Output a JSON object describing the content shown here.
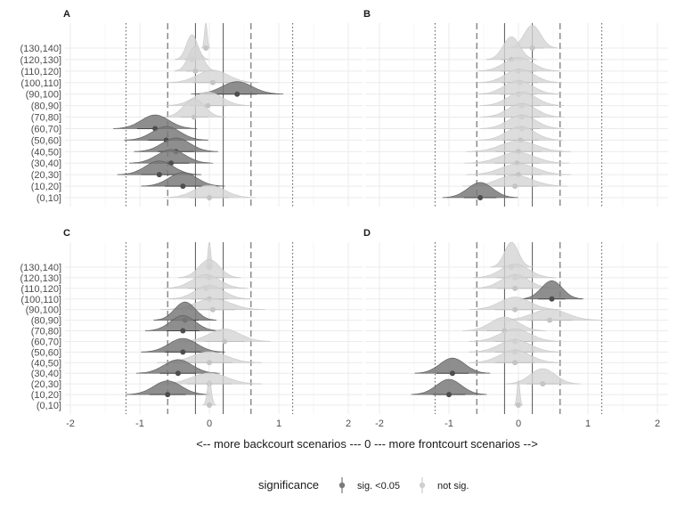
{
  "chart_data": {
    "type": "ridgeline",
    "xlabel": "<-- more backcourt scenarios --- 0 --- more frontcourt scenarios -->",
    "xlim": [
      -2.2,
      2.2
    ],
    "x_ticks": [
      -2,
      -1,
      0,
      1,
      2
    ],
    "x_tick_labels": [
      "-2",
      "-1",
      "0",
      "1",
      "2"
    ],
    "categories": [
      "(0,10]",
      "(10,20]",
      "(20,30]",
      "(30,40]",
      "(40,50]",
      "(50,60]",
      "(60,70]",
      "(70,80]",
      "(80,90]",
      "(90,100]",
      "(100,110]",
      "(110,120]",
      "(120,130]",
      "(130,140]"
    ],
    "reference_lines": {
      "solid": [
        -0.2,
        0.2
      ],
      "dashed": [
        -0.6,
        0.6
      ],
      "dotted": [
        -1.2,
        1.2
      ]
    },
    "grid": true,
    "legend": {
      "title": "significance",
      "position": "bottom",
      "entries": [
        {
          "label": "sig. <0.05",
          "color": "#7a7a7a"
        },
        {
          "label": "not sig.",
          "color": "#cfcfcf"
        }
      ]
    },
    "colors": {
      "sig": "#7a7a7a",
      "not_sig": "#d4d4d4"
    },
    "panels": [
      {
        "label": "A",
        "estimates": [
          {
            "category": "(0,10]",
            "value": 0.0,
            "spread": 0.22,
            "sig": false
          },
          {
            "category": "(10,20]",
            "value": -0.38,
            "spread": 0.2,
            "sig": true
          },
          {
            "category": "(20,30]",
            "value": -0.72,
            "spread": 0.2,
            "sig": true
          },
          {
            "category": "(30,40]",
            "value": -0.55,
            "spread": 0.2,
            "sig": true
          },
          {
            "category": "(40,50]",
            "value": -0.48,
            "spread": 0.2,
            "sig": true
          },
          {
            "category": "(50,60]",
            "value": -0.62,
            "spread": 0.2,
            "sig": true
          },
          {
            "category": "(60,70]",
            "value": -0.78,
            "spread": 0.2,
            "sig": true
          },
          {
            "category": "(70,80]",
            "value": -0.22,
            "spread": 0.15,
            "sig": false
          },
          {
            "category": "(80,90]",
            "value": -0.02,
            "spread": 0.2,
            "sig": false
          },
          {
            "category": "(90,100]",
            "value": 0.4,
            "spread": 0.22,
            "sig": true
          },
          {
            "category": "(100,110]",
            "value": 0.05,
            "spread": 0.22,
            "sig": false
          },
          {
            "category": "(110,120]",
            "value": -0.2,
            "spread": 0.1,
            "sig": false
          },
          {
            "category": "(120,130]",
            "value": -0.25,
            "spread": 0.08,
            "sig": false
          },
          {
            "category": "(130,140]",
            "value": -0.05,
            "spread": 0.02,
            "sig": false
          }
        ]
      },
      {
        "label": "B",
        "estimates": [
          {
            "category": "(0,10]",
            "value": -0.55,
            "spread": 0.18,
            "sig": true
          },
          {
            "category": "(10,20]",
            "value": -0.05,
            "spread": 0.25,
            "sig": false
          },
          {
            "category": "(20,30]",
            "value": 0.0,
            "spread": 0.25,
            "sig": false
          },
          {
            "category": "(30,40]",
            "value": -0.02,
            "spread": 0.25,
            "sig": false
          },
          {
            "category": "(40,50]",
            "value": 0.0,
            "spread": 0.25,
            "sig": false
          },
          {
            "category": "(50,60]",
            "value": 0.03,
            "spread": 0.2,
            "sig": false
          },
          {
            "category": "(60,70]",
            "value": 0.05,
            "spread": 0.2,
            "sig": false
          },
          {
            "category": "(70,80]",
            "value": 0.05,
            "spread": 0.2,
            "sig": false
          },
          {
            "category": "(80,90]",
            "value": 0.05,
            "spread": 0.2,
            "sig": false
          },
          {
            "category": "(90,100]",
            "value": 0.0,
            "spread": 0.2,
            "sig": false
          },
          {
            "category": "(100,110]",
            "value": 0.02,
            "spread": 0.2,
            "sig": false
          },
          {
            "category": "(110,120]",
            "value": 0.0,
            "spread": 0.2,
            "sig": false
          },
          {
            "category": "(120,130]",
            "value": -0.1,
            "spread": 0.12,
            "sig": false
          },
          {
            "category": "(130,140]",
            "value": 0.2,
            "spread": 0.12,
            "sig": false
          }
        ]
      },
      {
        "label": "C",
        "estimates": [
          {
            "category": "(0,10]",
            "value": 0.0,
            "spread": 0.03,
            "sig": false
          },
          {
            "category": "(10,20]",
            "value": -0.6,
            "spread": 0.2,
            "sig": true
          },
          {
            "category": "(20,30]",
            "value": 0.0,
            "spread": 0.25,
            "sig": false
          },
          {
            "category": "(30,40]",
            "value": -0.45,
            "spread": 0.2,
            "sig": true
          },
          {
            "category": "(40,50]",
            "value": 0.0,
            "spread": 0.25,
            "sig": false
          },
          {
            "category": "(50,60]",
            "value": -0.38,
            "spread": 0.2,
            "sig": true
          },
          {
            "category": "(60,70]",
            "value": 0.22,
            "spread": 0.22,
            "sig": false
          },
          {
            "category": "(70,80]",
            "value": -0.38,
            "spread": 0.18,
            "sig": true
          },
          {
            "category": "(80,90]",
            "value": -0.35,
            "spread": 0.15,
            "sig": true
          },
          {
            "category": "(90,100]",
            "value": 0.05,
            "spread": 0.25,
            "sig": false
          },
          {
            "category": "(100,110]",
            "value": 0.0,
            "spread": 0.2,
            "sig": false
          },
          {
            "category": "(110,120]",
            "value": -0.05,
            "spread": 0.2,
            "sig": false
          },
          {
            "category": "(120,130]",
            "value": 0.0,
            "spread": 0.15,
            "sig": false
          },
          {
            "category": "(130,140]",
            "value": 0.0,
            "spread": 0.02,
            "sig": false
          }
        ]
      },
      {
        "label": "D",
        "estimates": [
          {
            "category": "(0,10]",
            "value": 0.0,
            "spread": 0.02,
            "sig": false
          },
          {
            "category": "(10,20]",
            "value": -1.0,
            "spread": 0.18,
            "sig": true
          },
          {
            "category": "(20,30]",
            "value": 0.35,
            "spread": 0.18,
            "sig": false
          },
          {
            "category": "(30,40]",
            "value": -0.95,
            "spread": 0.18,
            "sig": true
          },
          {
            "category": "(40,50]",
            "value": -0.05,
            "spread": 0.22,
            "sig": false
          },
          {
            "category": "(50,60]",
            "value": -0.05,
            "spread": 0.22,
            "sig": false
          },
          {
            "category": "(60,70]",
            "value": -0.05,
            "spread": 0.22,
            "sig": false
          },
          {
            "category": "(70,80]",
            "value": -0.2,
            "spread": 0.2,
            "sig": false
          },
          {
            "category": "(80,90]",
            "value": 0.45,
            "spread": 0.25,
            "sig": false
          },
          {
            "category": "(90,100]",
            "value": -0.05,
            "spread": 0.22,
            "sig": false
          },
          {
            "category": "(100,110]",
            "value": 0.48,
            "spread": 0.15,
            "sig": true
          },
          {
            "category": "(110,120]",
            "value": -0.05,
            "spread": 0.2,
            "sig": false
          },
          {
            "category": "(120,130]",
            "value": -0.05,
            "spread": 0.2,
            "sig": false
          },
          {
            "category": "(130,140]",
            "value": -0.1,
            "spread": 0.1,
            "sig": false
          }
        ]
      }
    ]
  }
}
